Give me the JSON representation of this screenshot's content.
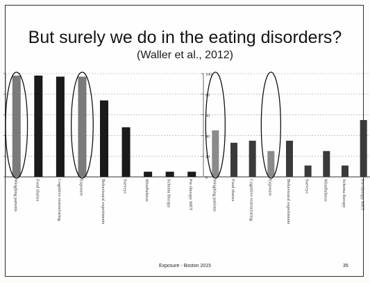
{
  "slide": {
    "title": "But surely we do in the eating disorders?",
    "subtitle": "(Waller et al., 2012)",
    "footer": "Exposure - Boston 2015",
    "slide_number": "35"
  },
  "chart_data": [
    {
      "type": "bar",
      "title": "",
      "xlabel": "",
      "ylabel": "",
      "ylim": [
        0,
        100
      ],
      "grid": true,
      "bar_color": "#1a1a1a",
      "categories": [
        "Weighing patients",
        "Food diaries",
        "Cognitive restructuring",
        "Exposure",
        "Behavioural experiments",
        "Surveys",
        "Mindfulness",
        "Schema therapy",
        "Pre-therapy MET"
      ],
      "series": [
        {
          "values": [
            98,
            98,
            97,
            97,
            74,
            48,
            5,
            5,
            5
          ]
        }
      ],
      "highlighted": [
        "Weighing patients",
        "Exposure"
      ],
      "highlight_fill": "#7a7a7a"
    },
    {
      "type": "bar",
      "title": "",
      "xlabel": "",
      "ylabel": "",
      "ylim": [
        0,
        100
      ],
      "y_ticks": [
        0,
        20,
        40,
        60,
        80,
        100
      ],
      "grid": true,
      "bar_color": "#3a3a3a",
      "categories": [
        "Weighing patients",
        "Food diaries",
        "Cognitive restructuring",
        "Exposure",
        "Behavioural experiments",
        "Surveys",
        "Mindfulness",
        "Schema therapy",
        "Pre-therapy MET"
      ],
      "series": [
        {
          "values": [
            45,
            33,
            35,
            25,
            35,
            11,
            25,
            11,
            55
          ]
        }
      ],
      "highlighted": [
        "Weighing patients",
        "Exposure"
      ],
      "highlight_fill": "#8a8a8a"
    }
  ]
}
